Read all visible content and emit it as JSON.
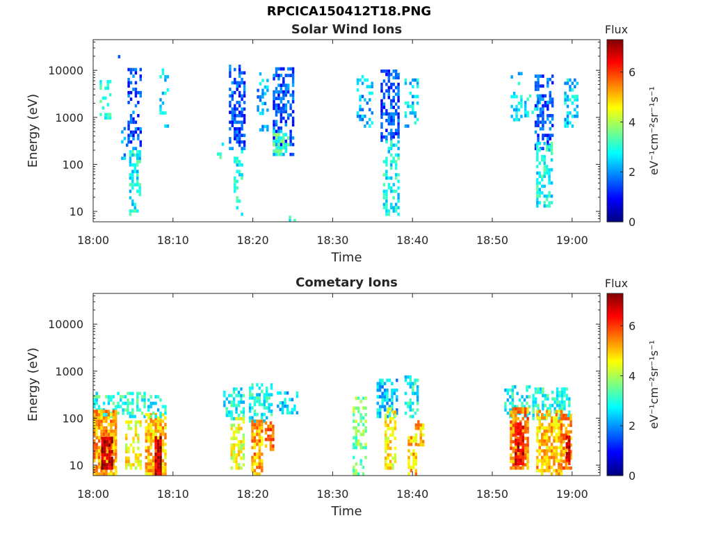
{
  "figure_title": "RPCICA150412T18.PNG",
  "colorscale": [
    "#00007f",
    "#0000ff",
    "#007fff",
    "#00ffff",
    "#7fff7f",
    "#ffff00",
    "#ff7f00",
    "#ff0000",
    "#7f0000"
  ],
  "chart_data": [
    {
      "type": "heatmap",
      "title": "Solar Wind Ions",
      "xlabel": "Time",
      "ylabel": "Energy (eV)",
      "x_unit": "minutes after 18:00",
      "xlim": [
        0,
        63.5
      ],
      "ylim": [
        6,
        45000
      ],
      "yscale": "log",
      "xticks": [
        0,
        10,
        20,
        30,
        40,
        50,
        60
      ],
      "xticklabels": [
        "18:00",
        "18:10",
        "18:20",
        "18:30",
        "18:40",
        "18:50",
        "19:00"
      ],
      "yticks": [
        10,
        100,
        1000,
        10000
      ],
      "yticklabels": [
        "10",
        "100",
        "1000",
        "10000"
      ],
      "colorbar": {
        "label": "Flux",
        "units_label": "eV⁻¹cm⁻²sr⁻¹s⁻¹",
        "range": [
          0,
          7.3
        ],
        "ticks": [
          0,
          2,
          4,
          6
        ],
        "ticklabels": [
          "0",
          "2",
          "4",
          "6"
        ]
      },
      "clusters": [
        {
          "t0": 0.8,
          "t1": 2.3,
          "e_low": 900,
          "e_high": 6000,
          "flux": 3.0,
          "density": 0.35
        },
        {
          "t0": 2.8,
          "t1": 3.1,
          "e_low": 18000,
          "e_high": 20000,
          "flux": 1.5,
          "density": 0.8
        },
        {
          "t0": 3.5,
          "t1": 4.3,
          "e_low": 90,
          "e_high": 700,
          "flux": 2.0,
          "density": 0.3
        },
        {
          "t0": 4.3,
          "t1": 5.8,
          "e_low": 200,
          "e_high": 11000,
          "flux": 1.5,
          "density": 0.45
        },
        {
          "t0": 4.5,
          "t1": 5.8,
          "e_low": 8,
          "e_high": 200,
          "flux": 2.8,
          "density": 0.45
        },
        {
          "t0": 8.3,
          "t1": 9.3,
          "e_low": 600,
          "e_high": 12000,
          "flux": 2.5,
          "density": 0.25
        },
        {
          "t0": 15.5,
          "t1": 16.5,
          "e_low": 130,
          "e_high": 400,
          "flux": 2.8,
          "density": 0.25
        },
        {
          "t0": 17.0,
          "t1": 19.0,
          "e_low": 200,
          "e_high": 12000,
          "flux": 1.5,
          "density": 0.5
        },
        {
          "t0": 17.6,
          "t1": 18.8,
          "e_low": 8,
          "e_high": 200,
          "flux": 2.8,
          "density": 0.4
        },
        {
          "t0": 20.5,
          "t1": 22.0,
          "e_low": 500,
          "e_high": 8000,
          "flux": 2.2,
          "density": 0.35
        },
        {
          "t0": 22.5,
          "t1": 25.0,
          "e_low": 150,
          "e_high": 11000,
          "flux": 1.5,
          "density": 0.55
        },
        {
          "t0": 22.5,
          "t1": 24.5,
          "e_low": 150,
          "e_high": 500,
          "flux": 3.2,
          "density": 0.5
        },
        {
          "t0": 24.5,
          "t1": 25.3,
          "e_low": 5,
          "e_high": 8,
          "flux": 2.8,
          "density": 0.6
        },
        {
          "t0": 33.0,
          "t1": 35.0,
          "e_low": 600,
          "e_high": 7000,
          "flux": 2.2,
          "density": 0.3
        },
        {
          "t0": 36.0,
          "t1": 38.2,
          "e_low": 300,
          "e_high": 10000,
          "flux": 1.5,
          "density": 0.55
        },
        {
          "t0": 36.3,
          "t1": 38.2,
          "e_low": 8,
          "e_high": 300,
          "flux": 2.8,
          "density": 0.45
        },
        {
          "t0": 39.0,
          "t1": 40.5,
          "e_low": 600,
          "e_high": 6000,
          "flux": 2.4,
          "density": 0.35
        },
        {
          "t0": 52.3,
          "t1": 53.5,
          "e_low": 700,
          "e_high": 9000,
          "flux": 2.4,
          "density": 0.35
        },
        {
          "t0": 54.0,
          "t1": 56.0,
          "e_low": 1000,
          "e_high": 3000,
          "flux": 2.6,
          "density": 0.35
        },
        {
          "t0": 55.3,
          "t1": 57.5,
          "e_low": 200,
          "e_high": 8000,
          "flux": 1.5,
          "density": 0.55
        },
        {
          "t0": 55.5,
          "t1": 57.3,
          "e_low": 12,
          "e_high": 300,
          "flux": 2.8,
          "density": 0.5
        },
        {
          "t0": 59.0,
          "t1": 60.5,
          "e_low": 600,
          "e_high": 6000,
          "flux": 2.4,
          "density": 0.35
        }
      ]
    },
    {
      "type": "heatmap",
      "title": "Cometary Ions",
      "xlabel": "Time",
      "ylabel": "Energy (eV)",
      "x_unit": "minutes after 18:00",
      "xlim": [
        0,
        63.5
      ],
      "ylim": [
        6,
        45000
      ],
      "yscale": "log",
      "xticks": [
        0,
        10,
        20,
        30,
        40,
        50,
        60
      ],
      "xticklabels": [
        "18:00",
        "18:10",
        "18:20",
        "18:30",
        "18:40",
        "18:50",
        "19:00"
      ],
      "yticks": [
        10,
        100,
        1000,
        10000
      ],
      "yticklabels": [
        "10",
        "100",
        "1000",
        "10000"
      ],
      "colorbar": {
        "label": "Flux",
        "units_label": "eV⁻¹cm⁻²sr⁻¹s⁻¹",
        "range": [
          0,
          7.3
        ],
        "ticks": [
          0,
          2,
          4,
          6
        ],
        "ticklabels": [
          "0",
          "2",
          "4",
          "6"
        ]
      },
      "clusters": [
        {
          "t0": 0.0,
          "t1": 6.5,
          "e_low": 100,
          "e_high": 350,
          "flux": 3.0,
          "density": 0.5
        },
        {
          "t0": 0.0,
          "t1": 2.8,
          "e_low": 6,
          "e_high": 150,
          "flux": 5.2,
          "density": 0.85
        },
        {
          "t0": 1.0,
          "t1": 2.3,
          "e_low": 8,
          "e_high": 40,
          "flux": 6.8,
          "density": 0.85
        },
        {
          "t0": 4.0,
          "t1": 5.8,
          "e_low": 8,
          "e_high": 80,
          "flux": 4.6,
          "density": 0.6
        },
        {
          "t0": 6.5,
          "t1": 9.0,
          "e_low": 6,
          "e_high": 120,
          "flux": 5.0,
          "density": 0.75
        },
        {
          "t0": 7.7,
          "t1": 8.5,
          "e_low": 6,
          "e_high": 40,
          "flux": 6.9,
          "density": 0.9
        },
        {
          "t0": 6.8,
          "t1": 9.0,
          "e_low": 100,
          "e_high": 300,
          "flux": 2.8,
          "density": 0.4
        },
        {
          "t0": 16.3,
          "t1": 19.0,
          "e_low": 90,
          "e_high": 400,
          "flux": 2.8,
          "density": 0.55
        },
        {
          "t0": 17.2,
          "t1": 18.8,
          "e_low": 8,
          "e_high": 100,
          "flux": 4.4,
          "density": 0.6
        },
        {
          "t0": 19.5,
          "t1": 22.5,
          "e_low": 80,
          "e_high": 500,
          "flux": 2.8,
          "density": 0.55
        },
        {
          "t0": 19.8,
          "t1": 21.2,
          "e_low": 6,
          "e_high": 80,
          "flux": 5.2,
          "density": 0.75
        },
        {
          "t0": 21.5,
          "t1": 22.5,
          "e_low": 20,
          "e_high": 80,
          "flux": 5.6,
          "density": 0.7
        },
        {
          "t0": 23.0,
          "t1": 25.5,
          "e_low": 120,
          "e_high": 350,
          "flux": 2.4,
          "density": 0.55
        },
        {
          "t0": 32.5,
          "t1": 34.0,
          "e_low": 6,
          "e_high": 250,
          "flux": 3.6,
          "density": 0.35
        },
        {
          "t0": 35.5,
          "t1": 38.0,
          "e_low": 100,
          "e_high": 600,
          "flux": 2.4,
          "density": 0.55
        },
        {
          "t0": 36.5,
          "t1": 37.8,
          "e_low": 8,
          "e_high": 150,
          "flux": 4.6,
          "density": 0.6
        },
        {
          "t0": 39.0,
          "t1": 40.5,
          "e_low": 100,
          "e_high": 800,
          "flux": 2.8,
          "density": 0.5
        },
        {
          "t0": 39.4,
          "t1": 40.3,
          "e_low": 6,
          "e_high": 40,
          "flux": 5.0,
          "density": 0.75
        },
        {
          "t0": 40.3,
          "t1": 41.3,
          "e_low": 25,
          "e_high": 80,
          "flux": 5.0,
          "density": 0.6
        },
        {
          "t0": 51.5,
          "t1": 54.5,
          "e_low": 100,
          "e_high": 450,
          "flux": 2.8,
          "density": 0.5
        },
        {
          "t0": 52.2,
          "t1": 54.3,
          "e_low": 8,
          "e_high": 150,
          "flux": 5.4,
          "density": 0.75
        },
        {
          "t0": 52.8,
          "t1": 53.8,
          "e_low": 10,
          "e_high": 80,
          "flux": 6.6,
          "density": 0.8
        },
        {
          "t0": 55.0,
          "t1": 59.5,
          "e_low": 90,
          "e_high": 400,
          "flux": 3.0,
          "density": 0.55
        },
        {
          "t0": 55.5,
          "t1": 58.5,
          "e_low": 6,
          "e_high": 150,
          "flux": 5.0,
          "density": 0.7
        },
        {
          "t0": 58.5,
          "t1": 59.7,
          "e_low": 8,
          "e_high": 120,
          "flux": 5.4,
          "density": 0.7
        },
        {
          "t0": 59.2,
          "t1": 59.8,
          "e_low": 10,
          "e_high": 40,
          "flux": 6.8,
          "density": 0.85
        }
      ]
    }
  ]
}
